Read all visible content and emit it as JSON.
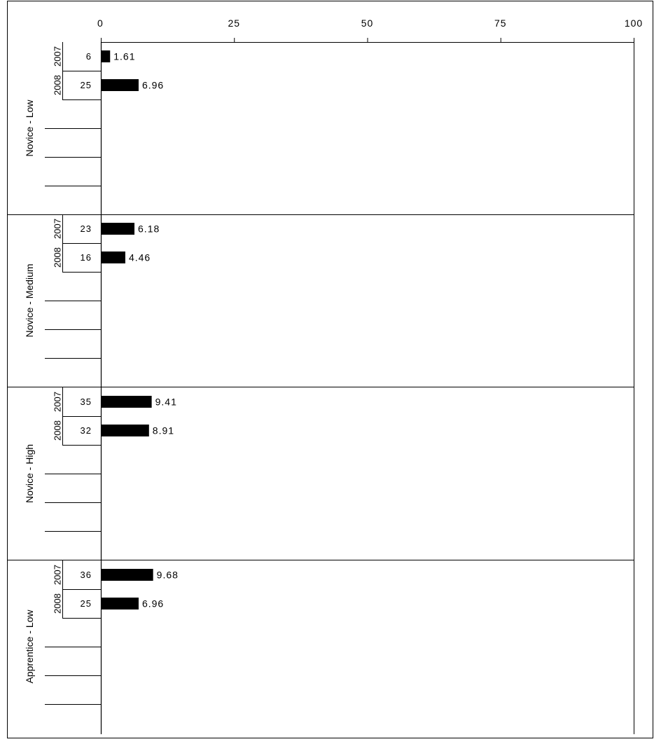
{
  "chart_data": {
    "type": "bar",
    "orientation": "horizontal",
    "xlim": [
      0,
      100
    ],
    "x_ticks": [
      "0",
      "25",
      "50",
      "75",
      "100"
    ],
    "grid": false,
    "groups": [
      {
        "label": "Novice - Low",
        "rows": [
          {
            "year": "2007",
            "count": "6",
            "value": 1.61,
            "value_label": "1.61"
          },
          {
            "year": "2008",
            "count": "25",
            "value": 6.96,
            "value_label": "6.96"
          }
        ]
      },
      {
        "label": "Novice - Medium",
        "rows": [
          {
            "year": "2007",
            "count": "23",
            "value": 6.18,
            "value_label": "6.18"
          },
          {
            "year": "2008",
            "count": "16",
            "value": 4.46,
            "value_label": "4.46"
          }
        ]
      },
      {
        "label": "Novice - High",
        "rows": [
          {
            "year": "2007",
            "count": "35",
            "value": 9.41,
            "value_label": "9.41"
          },
          {
            "year": "2008",
            "count": "32",
            "value": 8.91,
            "value_label": "8.91"
          }
        ]
      },
      {
        "label": "Apprentice - Low",
        "rows": [
          {
            "year": "2007",
            "count": "36",
            "value": 9.68,
            "value_label": "9.68"
          },
          {
            "year": "2008",
            "count": "25",
            "value": 6.96,
            "value_label": "6.96"
          }
        ]
      }
    ],
    "bar_color": "#000000"
  }
}
